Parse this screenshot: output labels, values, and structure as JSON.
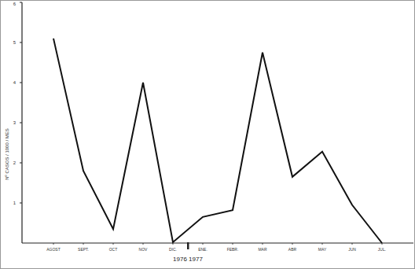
{
  "chart_data": {
    "type": "line",
    "ylabel": "Nº CASOS / 1000 / MES",
    "xlabel": "1976 1977",
    "categories": [
      "AGOST",
      "SEPT.",
      "OCT",
      "NOV",
      "DIC.",
      "ENE.",
      "FEBR.",
      "MAR",
      "ABR",
      "MAY",
      "JUN",
      "JUL."
    ],
    "values": [
      5.1,
      1.8,
      0.35,
      4.0,
      0.02,
      0.65,
      0.82,
      4.75,
      1.65,
      2.28,
      0.95,
      0
    ],
    "color": "#111111",
    "ylim": [
      0,
      6
    ],
    "yticks": [
      1,
      2,
      3,
      4,
      5,
      6
    ],
    "grid": false
  }
}
